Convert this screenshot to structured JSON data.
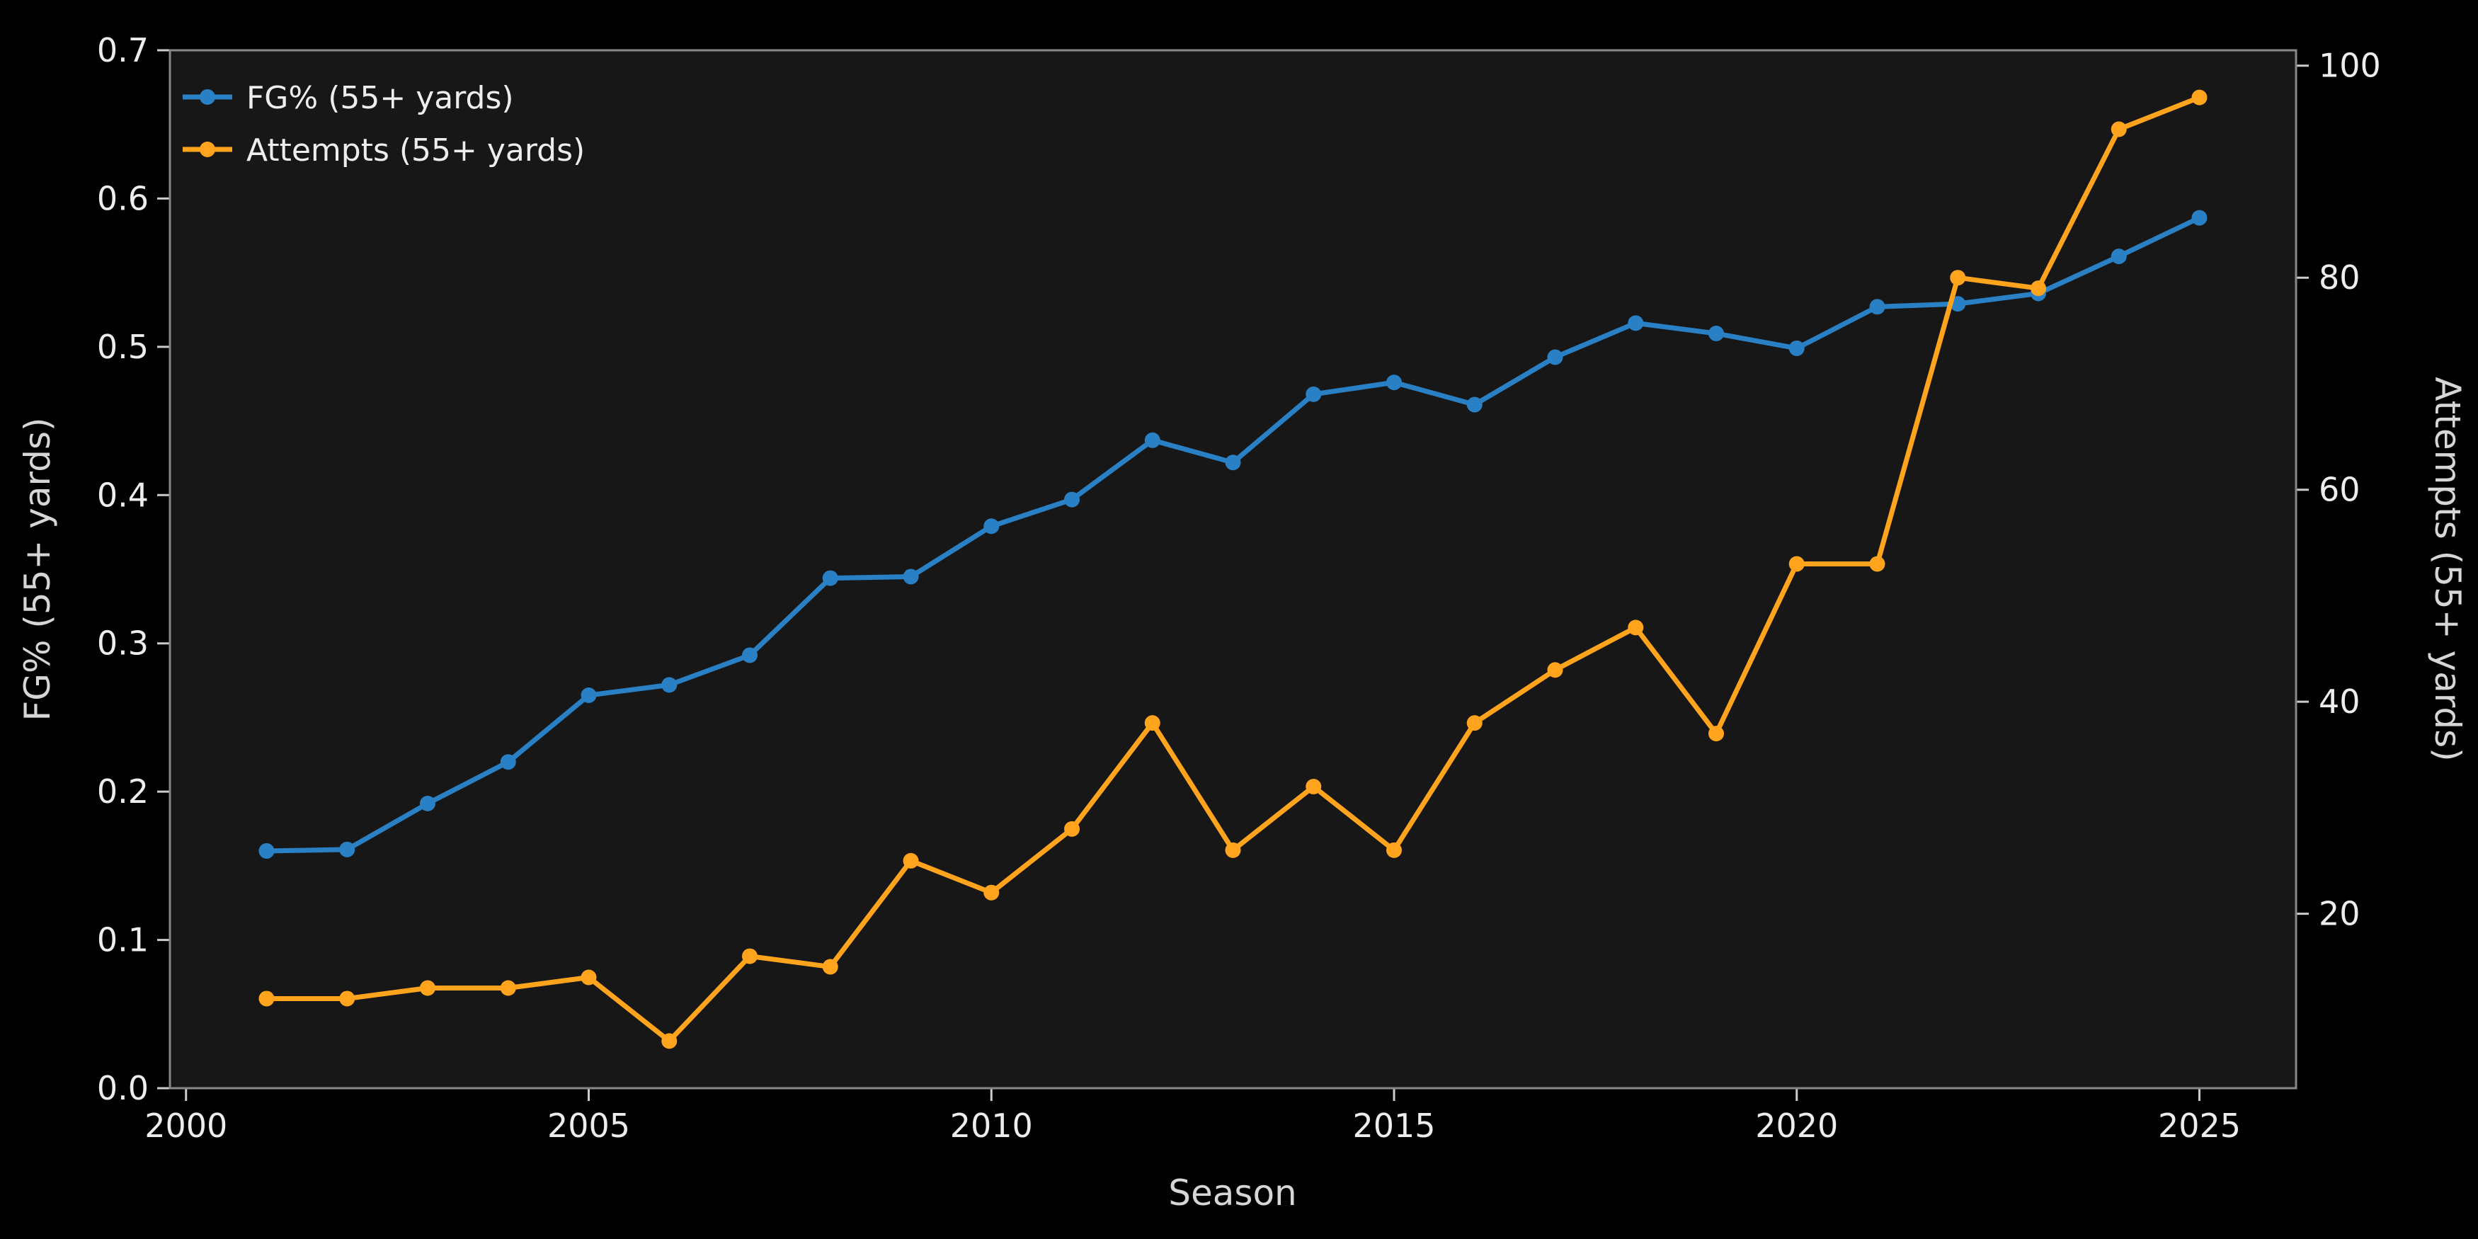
{
  "chart_data": {
    "type": "line",
    "title": "",
    "xlabel": "Season",
    "ylabel_left": "FG% (55+ yards)",
    "ylabel_right": "Attempts (55+ yards)",
    "x": [
      2001,
      2002,
      2003,
      2004,
      2005,
      2006,
      2007,
      2008,
      2009,
      2010,
      2011,
      2012,
      2013,
      2014,
      2015,
      2016,
      2017,
      2018,
      2019,
      2020,
      2021,
      2022,
      2023,
      2024,
      2025
    ],
    "series": [
      {
        "name": "FG% (55+ yards)",
        "axis": "left",
        "color": "#2a80c5",
        "values": [
          0.16,
          0.161,
          0.192,
          0.22,
          0.265,
          0.272,
          0.292,
          0.344,
          0.345,
          0.379,
          0.397,
          0.437,
          0.422,
          0.468,
          0.476,
          0.461,
          0.493,
          0.516,
          0.509,
          0.499,
          0.527,
          0.529,
          0.536,
          0.561,
          0.587
        ]
      },
      {
        "name": "Attempts (55+ yards)",
        "axis": "right",
        "color": "#ffa41c",
        "values": [
          12,
          12,
          13,
          13,
          14,
          8,
          16,
          15,
          25,
          22,
          28,
          38,
          26,
          32,
          26,
          38,
          43,
          47,
          37,
          53,
          53,
          80,
          79,
          94,
          97
        ]
      }
    ],
    "xlim": [
      1999.8,
      2026.2
    ],
    "ylim_left": [
      0.0,
      0.7
    ],
    "ylim_right": [
      3.55,
      101.45
    ],
    "xticks": [
      2000,
      2005,
      2010,
      2015,
      2020,
      2025
    ],
    "yticks_left": [
      "0.0",
      "0.1",
      "0.2",
      "0.3",
      "0.4",
      "0.5",
      "0.6",
      "0.7"
    ],
    "yticks_right": [
      20,
      40,
      60,
      80,
      100
    ],
    "grid": false,
    "legend_position": "upper-left",
    "colors": {
      "figure_background": "#000000",
      "axes_background": "#171717",
      "spine": "#888888",
      "tick_mark": "#cccccc",
      "tick_text": "#ededed",
      "label_text": "#d6d6d6"
    }
  }
}
